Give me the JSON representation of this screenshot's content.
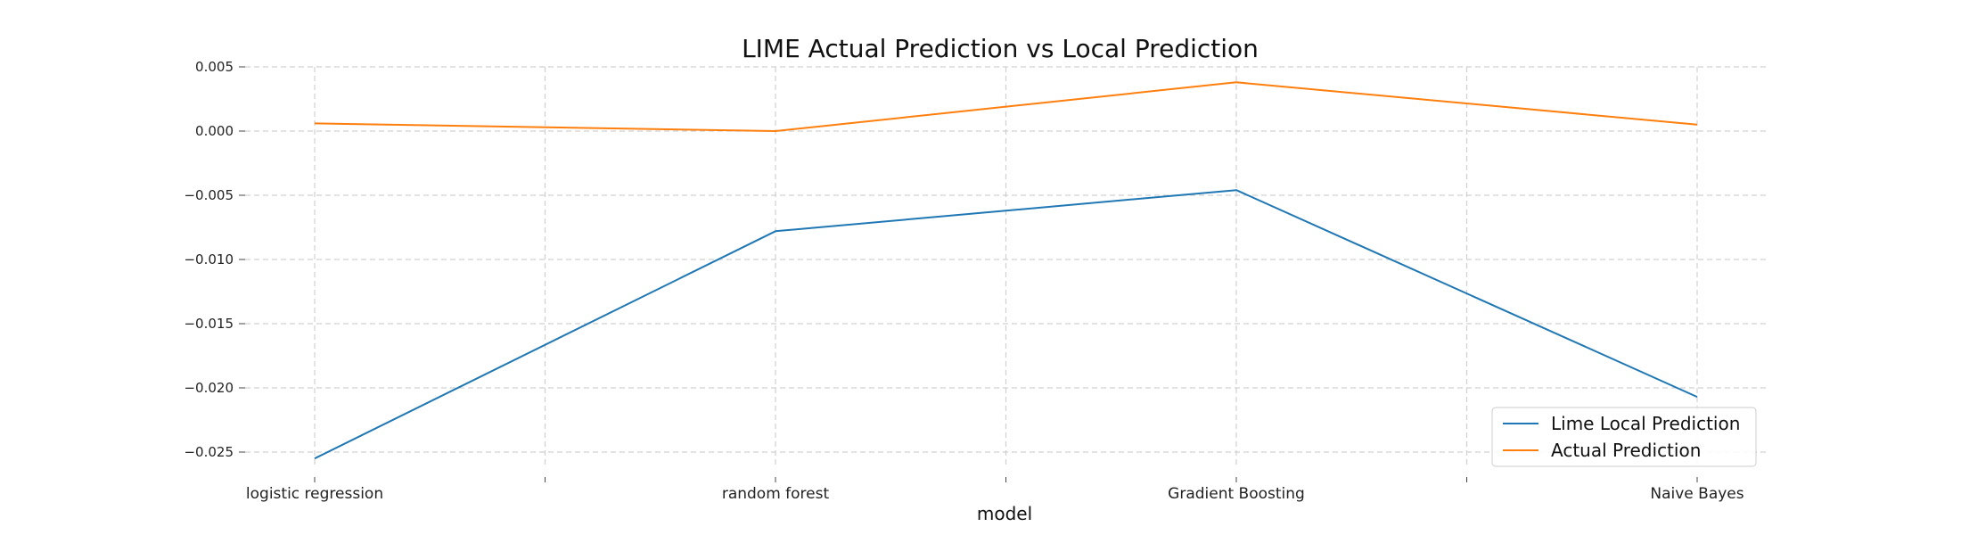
{
  "chart_data": {
    "type": "line",
    "title": "LIME Actual Prediction vs Local Prediction",
    "xlabel": "model",
    "ylabel": "",
    "categories": [
      "logistic regression",
      "random forest",
      "Gradient Boosting",
      "Naive Bayes"
    ],
    "series": [
      {
        "name": "Lime Local Prediction",
        "color": "#1f77b4",
        "values": [
          -0.0255,
          -0.0078,
          -0.0046,
          -0.0207
        ]
      },
      {
        "name": "Actual Prediction",
        "color": "#ff7f0e",
        "values": [
          0.0006,
          0.0,
          0.0038,
          0.0005
        ]
      }
    ],
    "yticks": [
      -0.025,
      -0.02,
      -0.015,
      -0.01,
      -0.005,
      0.0,
      0.005
    ],
    "ytick_labels": [
      "−0.025",
      "−0.020",
      "−0.015",
      "−0.010",
      "−0.005",
      "0.000",
      "0.005"
    ],
    "ylim": [
      -0.0265,
      0.0055
    ],
    "grid": true,
    "legend_position": "lower-right"
  }
}
